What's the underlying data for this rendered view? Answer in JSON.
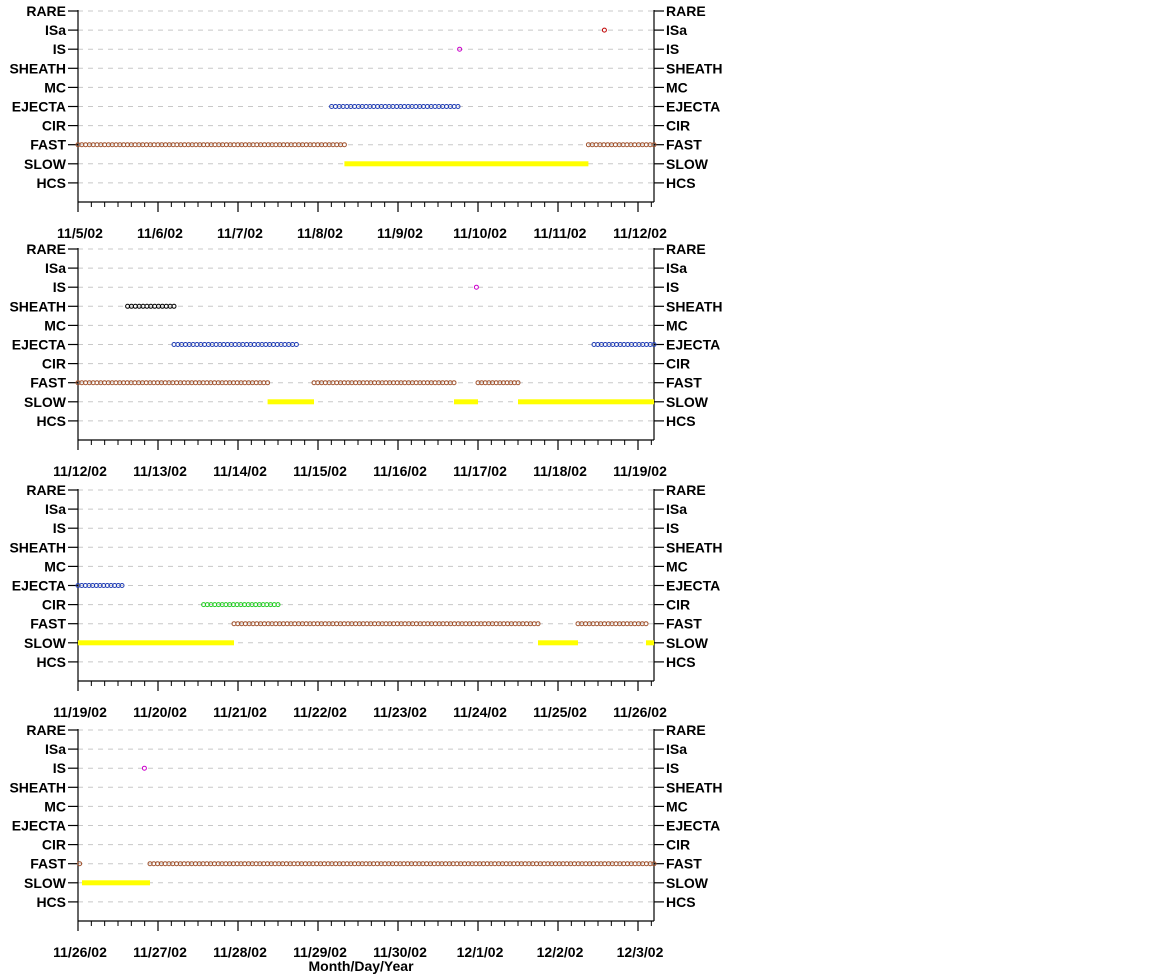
{
  "xlabel": "Month/Day/Year",
  "chart_data": [
    {
      "type": "scatter",
      "categories": [
        "RARE",
        "ISa",
        "IS",
        "SHEATH",
        "MC",
        "EJECTA",
        "CIR",
        "FAST",
        "SLOW",
        "HCS"
      ],
      "x_ticks": [
        "11/5/02",
        "11/6/02",
        "11/7/02",
        "11/8/02",
        "11/9/02",
        "11/10/02",
        "11/11/02",
        "11/12/02"
      ],
      "xlim": [
        0,
        7.2
      ],
      "grid": true,
      "series": [
        {
          "category": "FAST",
          "color": "#a0522d",
          "marker": "circle",
          "intervals": [
            [
              0,
              3.33
            ],
            [
              6.38,
              7.2
            ]
          ]
        },
        {
          "category": "SLOW",
          "color": "#ffff00",
          "marker": "bar",
          "intervals": [
            [
              3.33,
              6.38
            ]
          ]
        },
        {
          "category": "EJECTA",
          "color": "#1f3cb4",
          "marker": "circle",
          "intervals": [
            [
              3.17,
              4.75
            ]
          ]
        },
        {
          "category": "IS",
          "color": "#cc00cc",
          "marker": "circle",
          "intervals": [
            [
              4.77,
              4.77
            ]
          ]
        },
        {
          "category": "ISa",
          "color": "#c00000",
          "marker": "circle",
          "intervals": [
            [
              6.58,
              6.58
            ]
          ]
        }
      ]
    },
    {
      "type": "scatter",
      "categories": [
        "RARE",
        "ISa",
        "IS",
        "SHEATH",
        "MC",
        "EJECTA",
        "CIR",
        "FAST",
        "SLOW",
        "HCS"
      ],
      "x_ticks": [
        "11/12/02",
        "11/13/02",
        "11/14/02",
        "11/15/02",
        "11/16/02",
        "11/17/02",
        "11/18/02",
        "11/19/02"
      ],
      "xlim": [
        0,
        7.2
      ],
      "grid": true,
      "series": [
        {
          "category": "FAST",
          "color": "#a0522d",
          "marker": "circle",
          "intervals": [
            [
              0,
              2.37
            ],
            [
              2.95,
              4.7
            ],
            [
              5.0,
              5.5
            ]
          ]
        },
        {
          "category": "SLOW",
          "color": "#ffff00",
          "marker": "bar",
          "intervals": [
            [
              2.37,
              2.95
            ],
            [
              4.7,
              5.0
            ],
            [
              5.5,
              7.2
            ]
          ]
        },
        {
          "category": "SHEATH",
          "color": "#000000",
          "marker": "circle",
          "intervals": [
            [
              0.62,
              1.2
            ]
          ]
        },
        {
          "category": "EJECTA",
          "color": "#1f3cb4",
          "marker": "circle",
          "intervals": [
            [
              1.2,
              2.73
            ],
            [
              6.45,
              7.2
            ]
          ]
        },
        {
          "category": "IS",
          "color": "#cc00cc",
          "marker": "circle",
          "intervals": [
            [
              4.98,
              4.98
            ]
          ]
        }
      ]
    },
    {
      "type": "scatter",
      "categories": [
        "RARE",
        "ISa",
        "IS",
        "SHEATH",
        "MC",
        "EJECTA",
        "CIR",
        "FAST",
        "SLOW",
        "HCS"
      ],
      "x_ticks": [
        "11/19/02",
        "11/20/02",
        "11/21/02",
        "11/22/02",
        "11/23/02",
        "11/24/02",
        "11/25/02",
        "11/26/02"
      ],
      "xlim": [
        0,
        7.2
      ],
      "grid": true,
      "series": [
        {
          "category": "EJECTA",
          "color": "#1f3cb4",
          "marker": "circle",
          "intervals": [
            [
              0,
              0.55
            ]
          ]
        },
        {
          "category": "CIR",
          "color": "#22cc22",
          "marker": "circle",
          "intervals": [
            [
              1.57,
              2.5
            ]
          ]
        },
        {
          "category": "FAST",
          "color": "#a0522d",
          "marker": "circle",
          "intervals": [
            [
              1.95,
              5.75
            ],
            [
              6.25,
              7.1
            ]
          ]
        },
        {
          "category": "SLOW",
          "color": "#ffff00",
          "marker": "bar",
          "intervals": [
            [
              0,
              1.95
            ],
            [
              5.75,
              6.25
            ],
            [
              7.1,
              7.2
            ]
          ]
        }
      ]
    },
    {
      "type": "scatter",
      "categories": [
        "RARE",
        "ISa",
        "IS",
        "SHEATH",
        "MC",
        "EJECTA",
        "CIR",
        "FAST",
        "SLOW",
        "HCS"
      ],
      "x_ticks": [
        "11/26/02",
        "11/27/02",
        "11/28/02",
        "11/29/02",
        "11/30/02",
        "12/1/02",
        "12/2/02",
        "12/3/02"
      ],
      "xlim": [
        0,
        7.2
      ],
      "grid": true,
      "series": [
        {
          "category": "FAST",
          "color": "#a0522d",
          "marker": "circle",
          "intervals": [
            [
              0.02,
              0.02
            ],
            [
              0.9,
              7.2
            ]
          ]
        },
        {
          "category": "SLOW",
          "color": "#ffff00",
          "marker": "bar",
          "intervals": [
            [
              0.05,
              0.9
            ]
          ]
        },
        {
          "category": "IS",
          "color": "#cc00cc",
          "marker": "circle",
          "intervals": [
            [
              0.83,
              0.83
            ]
          ]
        }
      ]
    }
  ]
}
